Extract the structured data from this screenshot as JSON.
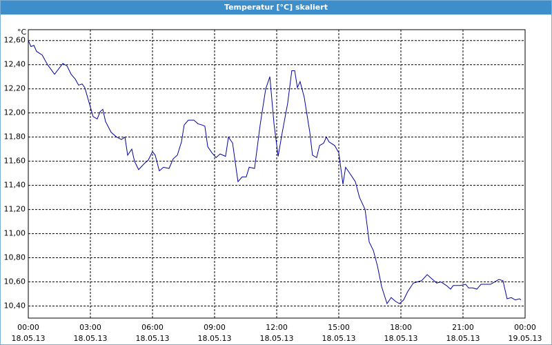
{
  "chart_data": {
    "type": "line",
    "title": "Temperatur [°C] skaliert",
    "y_label": "°C",
    "x": [
      0,
      0.13,
      0.27,
      0.4,
      0.67,
      0.93,
      1.27,
      1.4,
      1.67,
      1.87,
      2.07,
      2.27,
      2.43,
      2.6,
      2.73,
      2.93,
      3.13,
      3.33,
      3.47,
      3.6,
      3.73,
      4,
      4.27,
      4.5,
      4.67,
      4.8,
      5,
      5.13,
      5.33,
      5.6,
      5.8,
      6,
      6.13,
      6.33,
      6.53,
      6.8,
      7,
      7.2,
      7.4,
      7.53,
      7.73,
      8,
      8.2,
      8.4,
      8.53,
      8.67,
      8.87,
      9.07,
      9.27,
      9.53,
      9.67,
      9.87,
      10.13,
      10.33,
      10.53,
      10.67,
      10.93,
      11.2,
      11.47,
      11.67,
      11.87,
      12.07,
      12.27,
      12.53,
      12.73,
      12.87,
      13,
      13.13,
      13.33,
      13.6,
      13.73,
      13.93,
      14.07,
      14.27,
      14.4,
      14.53,
      14.8,
      15,
      15.2,
      15.33,
      15.53,
      15.8,
      16,
      16.27,
      16.47,
      16.67,
      16.87,
      17.07,
      17.33,
      17.53,
      17.73,
      17.93,
      18.13,
      18.33,
      18.6,
      18.8,
      19,
      19.27,
      19.53,
      19.73,
      19.93,
      20.2,
      20.4,
      20.53,
      20.87,
      21.13,
      21.27,
      21.47,
      21.67,
      21.87,
      22.13,
      22.33,
      22.53,
      22.73,
      22.93,
      23.13,
      23.33,
      23.53,
      23.73,
      23.8
    ],
    "values": [
      12.6,
      12.55,
      12.56,
      12.51,
      12.48,
      12.4,
      12.32,
      12.35,
      12.41,
      12.39,
      12.32,
      12.28,
      12.23,
      12.24,
      12.21,
      12.09,
      11.97,
      11.95,
      12.01,
      12.03,
      11.93,
      11.84,
      11.8,
      11.78,
      11.8,
      11.65,
      11.7,
      11.6,
      11.53,
      11.58,
      11.61,
      11.68,
      11.65,
      11.52,
      11.55,
      11.54,
      11.62,
      11.65,
      11.76,
      11.9,
      11.94,
      11.94,
      11.91,
      11.9,
      11.89,
      11.72,
      11.67,
      11.63,
      11.66,
      11.64,
      11.8,
      11.75,
      11.43,
      11.47,
      11.47,
      11.55,
      11.54,
      11.9,
      12.2,
      12.3,
      11.91,
      11.64,
      11.84,
      12.08,
      12.35,
      12.35,
      12.21,
      12.26,
      12.13,
      11.84,
      11.65,
      11.63,
      11.73,
      11.75,
      11.8,
      11.76,
      11.73,
      11.67,
      11.41,
      11.55,
      11.5,
      11.43,
      11.3,
      11.2,
      10.93,
      10.86,
      10.73,
      10.56,
      10.42,
      10.47,
      10.44,
      10.42,
      10.45,
      10.52,
      10.59,
      10.6,
      10.61,
      10.66,
      10.62,
      10.59,
      10.6,
      10.57,
      10.54,
      10.57,
      10.57,
      10.58,
      10.55,
      10.55,
      10.54,
      10.58,
      10.58,
      10.58,
      10.6,
      10.62,
      10.61,
      10.46,
      10.47,
      10.45,
      10.46,
      10.45
    ],
    "color": "#0000a0",
    "xlim": [
      0,
      24
    ],
    "xticks": [
      {
        "value": 0,
        "label": "00:00\n18.05.13"
      },
      {
        "value": 3,
        "label": "03:00\n18.05.13"
      },
      {
        "value": 6,
        "label": "06:00\n18.05.13"
      },
      {
        "value": 9,
        "label": "09:00\n18.05.13"
      },
      {
        "value": 12,
        "label": "12:00\n18.05.13"
      },
      {
        "value": 15,
        "label": "15:00\n18.05.13"
      },
      {
        "value": 18,
        "label": "18:00\n18.05.13"
      },
      {
        "value": 21,
        "label": "21:00\n18.05.13"
      },
      {
        "value": 24,
        "label": "00:00\n19.05.13"
      }
    ],
    "ylim": [
      10.3,
      12.69
    ],
    "yticks": [
      {
        "value": 10.4,
        "label": "10,40"
      },
      {
        "value": 10.6,
        "label": "10,60"
      },
      {
        "value": 10.8,
        "label": "10,80"
      },
      {
        "value": 11.0,
        "label": "11,00"
      },
      {
        "value": 11.2,
        "label": "11,20"
      },
      {
        "value": 11.4,
        "label": "11,40"
      },
      {
        "value": 11.6,
        "label": "11,60"
      },
      {
        "value": 11.8,
        "label": "11,80"
      },
      {
        "value": 12.0,
        "label": "12,00"
      },
      {
        "value": 12.2,
        "label": "12,20"
      },
      {
        "value": 12.4,
        "label": "12,40"
      },
      {
        "value": 12.6,
        "label": "12,60"
      }
    ],
    "grid": true
  }
}
